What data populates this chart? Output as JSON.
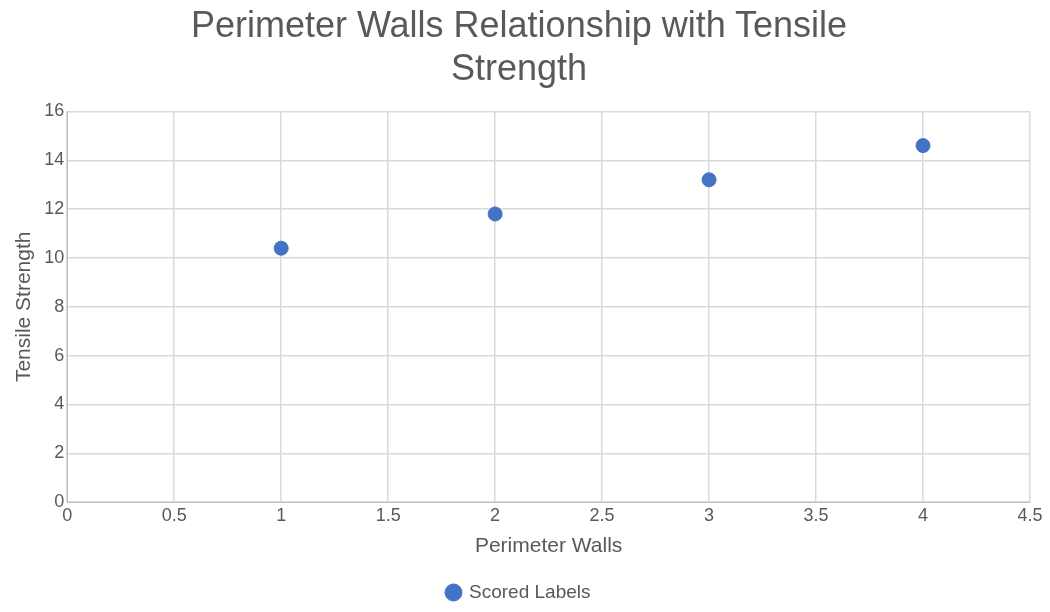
{
  "chart_data": {
    "type": "scatter",
    "title": "Perimeter Walls Relationship with Tensile Strength",
    "xlabel": "Perimeter Walls",
    "ylabel": "Tensile Strength",
    "x": [
      1,
      2,
      3,
      4
    ],
    "series": [
      {
        "name": "Scored Labels",
        "color": "#4472c4",
        "values": [
          10.4,
          11.8,
          13.2,
          14.6
        ]
      }
    ],
    "xlim": [
      0,
      4.5
    ],
    "xticks": [
      0,
      0.5,
      1,
      1.5,
      2,
      2.5,
      3,
      3.5,
      4,
      4.5
    ],
    "ylim": [
      0,
      16
    ],
    "yticks": [
      0,
      2,
      4,
      6,
      8,
      10,
      12,
      14,
      16
    ],
    "grid": true,
    "legend": "bottom",
    "marker": "circle"
  }
}
